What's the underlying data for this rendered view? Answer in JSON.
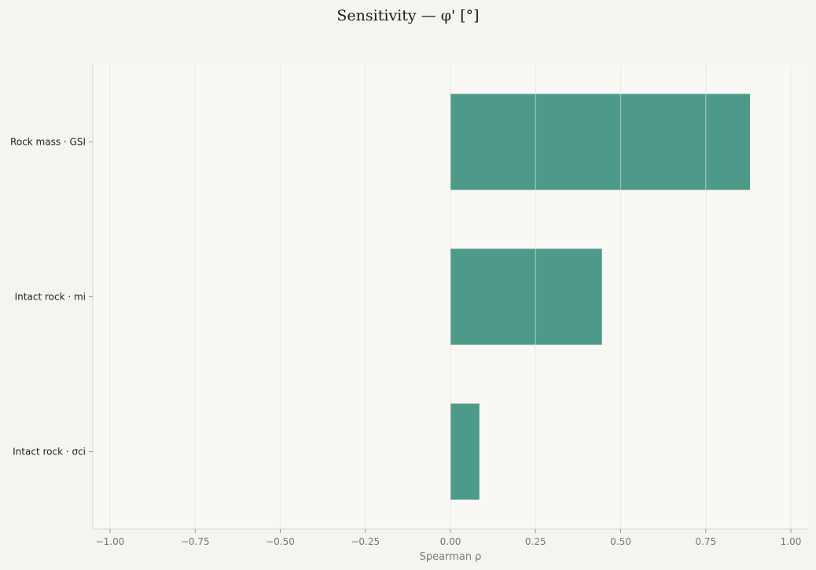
{
  "chart_data": {
    "type": "bar",
    "orientation": "horizontal",
    "title": "Sensitivity — φ' [°]",
    "xlabel": "Spearman ρ",
    "ylabel": "",
    "xlim": [
      -1.0,
      1.0
    ],
    "x_ticks": [
      "−1.00",
      "−0.75",
      "−0.50",
      "−0.25",
      "0.00",
      "0.25",
      "0.50",
      "0.75",
      "1.00"
    ],
    "categories": [
      "Rock mass · GSI",
      "Intact rock · mi",
      "Intact rock · σci"
    ],
    "values": [
      0.88,
      0.445,
      0.085
    ],
    "grid": "vertical",
    "legend": "none",
    "colors": {
      "bar": "#4e9a8a",
      "plot_background": "#f9f8f4",
      "page_background": "#f5f4ee",
      "grid": "#dedcd4"
    }
  }
}
